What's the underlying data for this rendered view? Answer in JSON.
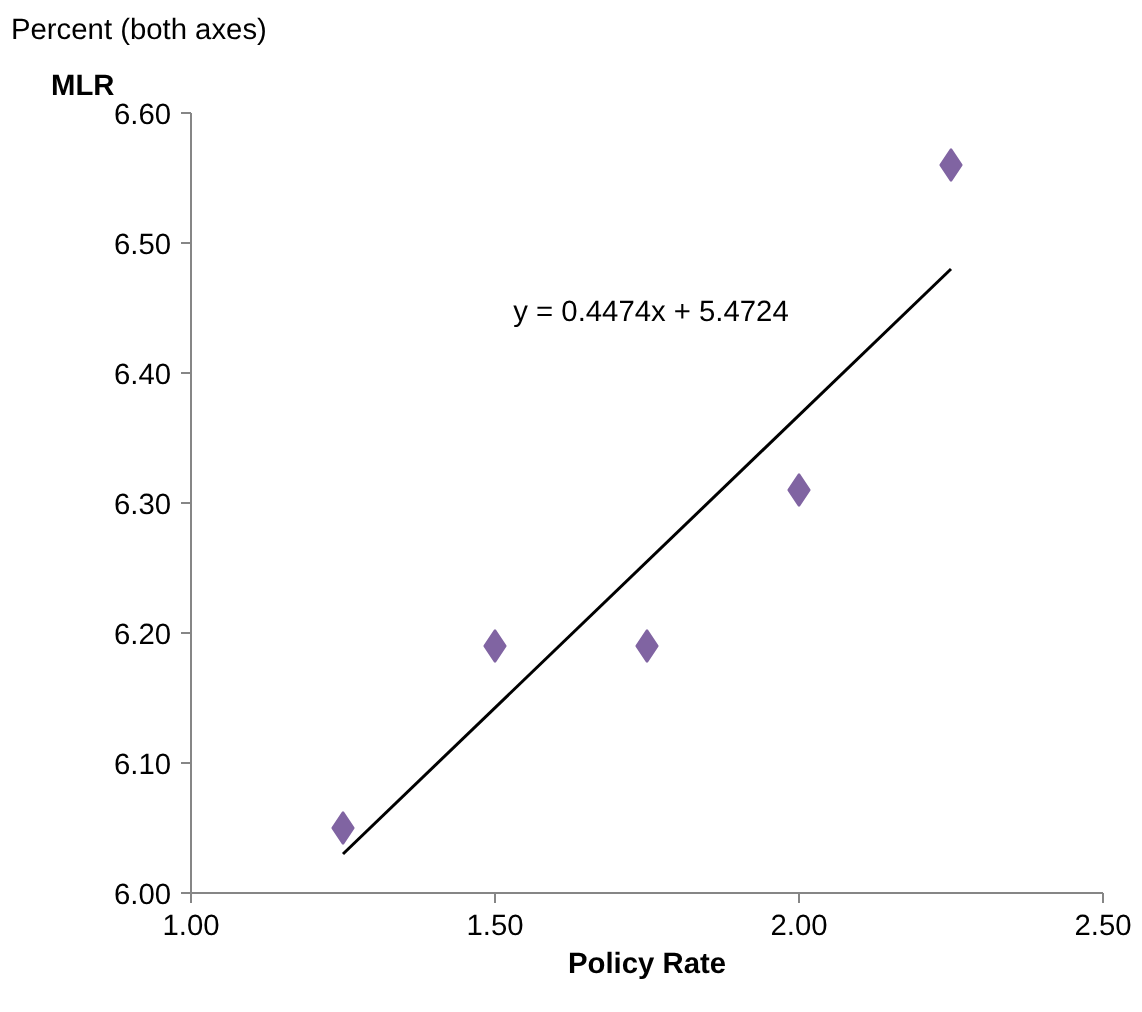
{
  "chart_data": {
    "type": "scatter",
    "title": "Percent (both axes)",
    "ylabel": "MLR",
    "xlabel": "Policy Rate",
    "x": [
      1.25,
      1.5,
      1.75,
      2.0,
      2.25
    ],
    "series": [
      {
        "color": "#8064a2",
        "marker": "diamond",
        "values": [
          6.05,
          6.19,
          6.19,
          6.31,
          6.56
        ]
      },
      {
        "type": "line",
        "color": "#000000",
        "marker": "none",
        "line_style": "solid",
        "x": [
          1.25,
          2.25
        ],
        "values": [
          6.03,
          6.48
        ]
      }
    ],
    "annotations": [
      "y = 0.4474x + 5.4724"
    ],
    "xlim": [
      1.0,
      2.5
    ],
    "xticks": [
      {
        "value": 1.0,
        "label": "1.00"
      },
      {
        "value": 1.5,
        "label": "1.50"
      },
      {
        "value": 2.0,
        "label": "2.00"
      },
      {
        "value": 2.5,
        "label": "2.50"
      }
    ],
    "ylim": [
      6.0,
      6.6
    ],
    "yticks": [
      {
        "value": 6.0,
        "label": "6.00"
      },
      {
        "value": 6.1,
        "label": "6.10"
      },
      {
        "value": 6.2,
        "label": "6.20"
      },
      {
        "value": 6.3,
        "label": "6.30"
      },
      {
        "value": 6.4,
        "label": "6.40"
      },
      {
        "value": 6.5,
        "label": "6.50"
      },
      {
        "value": 6.6,
        "label": "6.60"
      }
    ],
    "grid": false
  }
}
